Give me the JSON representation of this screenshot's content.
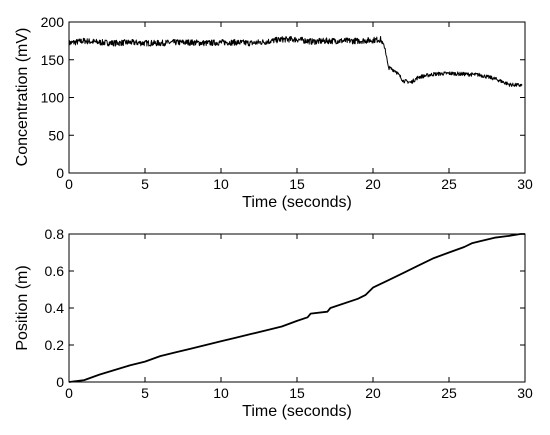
{
  "chart_data": [
    {
      "type": "line",
      "title": "",
      "xlabel": "Time (seconds)",
      "ylabel": "Concentration (mV)",
      "xlim": [
        0,
        30
      ],
      "ylim": [
        0,
        200
      ],
      "xticks": [
        "0",
        "5",
        "10",
        "15",
        "20",
        "25",
        "30"
      ],
      "yticks": [
        "0",
        "50",
        "100",
        "150",
        "200"
      ],
      "grid": false,
      "legend": "none",
      "noisy": true,
      "series": [
        {
          "color": "#000000",
          "x": [
            0,
            1,
            2,
            3,
            4,
            5,
            6,
            7,
            8,
            9,
            10,
            11,
            12,
            13,
            14,
            15,
            16,
            17,
            18,
            19,
            20,
            20.5,
            20.8,
            21.0,
            21.5,
            22,
            22.5,
            23,
            24,
            25,
            26,
            27,
            28,
            29,
            29.8
          ],
          "y": [
            172,
            175,
            173,
            172,
            173,
            172,
            172,
            173,
            173,
            172,
            173,
            173,
            172,
            174,
            177,
            177,
            174,
            175,
            175,
            175,
            176,
            177,
            165,
            140,
            135,
            122,
            120,
            127,
            131,
            132,
            131,
            130,
            125,
            117,
            116
          ]
        }
      ]
    },
    {
      "type": "line",
      "title": "",
      "xlabel": "Time (seconds)",
      "ylabel": "Position (m)",
      "xlim": [
        0,
        30
      ],
      "ylim": [
        0,
        0.8
      ],
      "xticks": [
        "0",
        "5",
        "10",
        "15",
        "20",
        "25",
        "30"
      ],
      "yticks": [
        "0",
        "0.2",
        "0.4",
        "0.6",
        "0.8"
      ],
      "grid": false,
      "legend": "none",
      "noisy": false,
      "series": [
        {
          "color": "#000000",
          "x": [
            0,
            1,
            2,
            3,
            4,
            5,
            6,
            7,
            8,
            9,
            10,
            11,
            12,
            13,
            14,
            15,
            15.7,
            15.9,
            17,
            17.2,
            19,
            19.5,
            20,
            21,
            22,
            23,
            24,
            25,
            26,
            26.5,
            27,
            28,
            29,
            29.7,
            30
          ],
          "y": [
            0,
            0.01,
            0.04,
            0.065,
            0.09,
            0.11,
            0.14,
            0.16,
            0.18,
            0.2,
            0.22,
            0.24,
            0.26,
            0.28,
            0.3,
            0.33,
            0.35,
            0.37,
            0.38,
            0.4,
            0.45,
            0.47,
            0.51,
            0.55,
            0.59,
            0.63,
            0.67,
            0.7,
            0.73,
            0.75,
            0.76,
            0.78,
            0.79,
            0.8,
            0.8
          ]
        }
      ]
    }
  ]
}
